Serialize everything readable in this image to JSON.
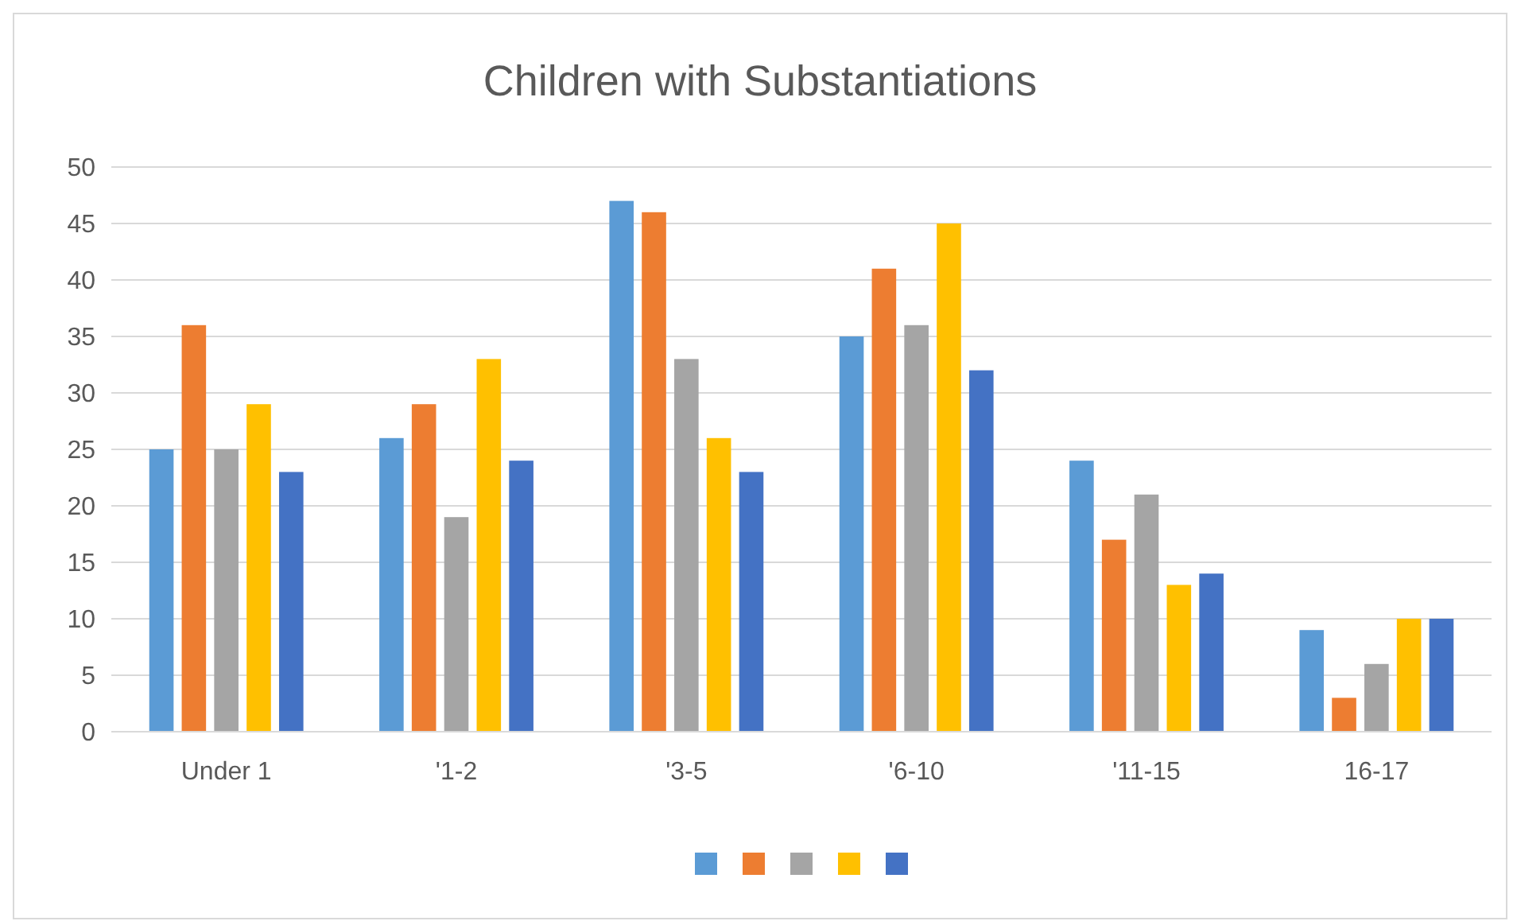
{
  "chart_data": {
    "type": "bar",
    "title": "Children with Substantiations",
    "categories": [
      "Under 1",
      "'1-2",
      "'3-5",
      "'6-10",
      "'11-15",
      "16-17"
    ],
    "series": [
      {
        "color": "#5b9bd5",
        "values": [
          25,
          26,
          47,
          35,
          24,
          9
        ]
      },
      {
        "color": "#ed7d31",
        "values": [
          36,
          29,
          46,
          41,
          17,
          3
        ]
      },
      {
        "color": "#a5a5a5",
        "values": [
          25,
          19,
          33,
          36,
          21,
          6
        ]
      },
      {
        "color": "#ffc000",
        "values": [
          29,
          33,
          26,
          45,
          13,
          10
        ]
      },
      {
        "color": "#4472c4",
        "values": [
          23,
          24,
          23,
          32,
          14,
          10
        ]
      }
    ],
    "ylim": [
      0,
      50
    ],
    "yticks": [
      0,
      5,
      10,
      15,
      20,
      25,
      30,
      35,
      40,
      45,
      50
    ],
    "grid": "y"
  }
}
